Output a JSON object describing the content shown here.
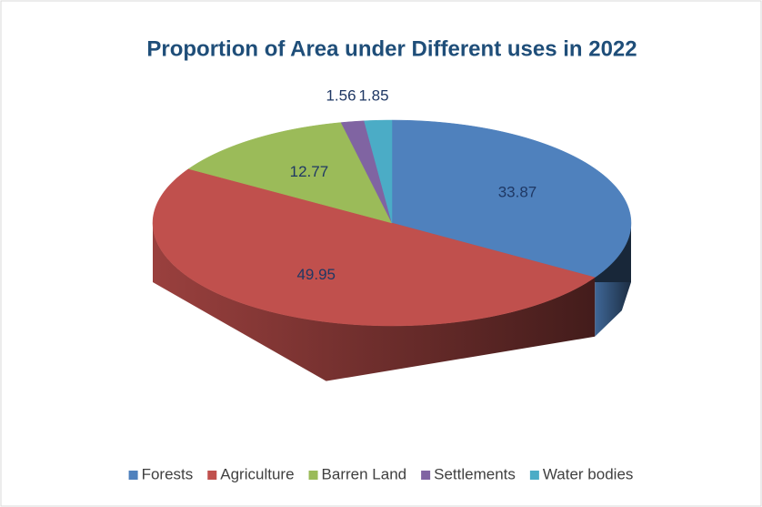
{
  "chart_data": {
    "type": "pie3d",
    "title": "Proportion of Area under Different uses in 2022",
    "categories": [
      "Forests",
      "Agriculture",
      "Barren Land",
      "Settlements",
      "Water bodies"
    ],
    "values": [
      33.87,
      49.95,
      12.77,
      1.56,
      1.85
    ],
    "colors": [
      "#4f81bd",
      "#c0504d",
      "#9bbb59",
      "#8064a2",
      "#4bacc6"
    ],
    "legend": "bottom"
  }
}
